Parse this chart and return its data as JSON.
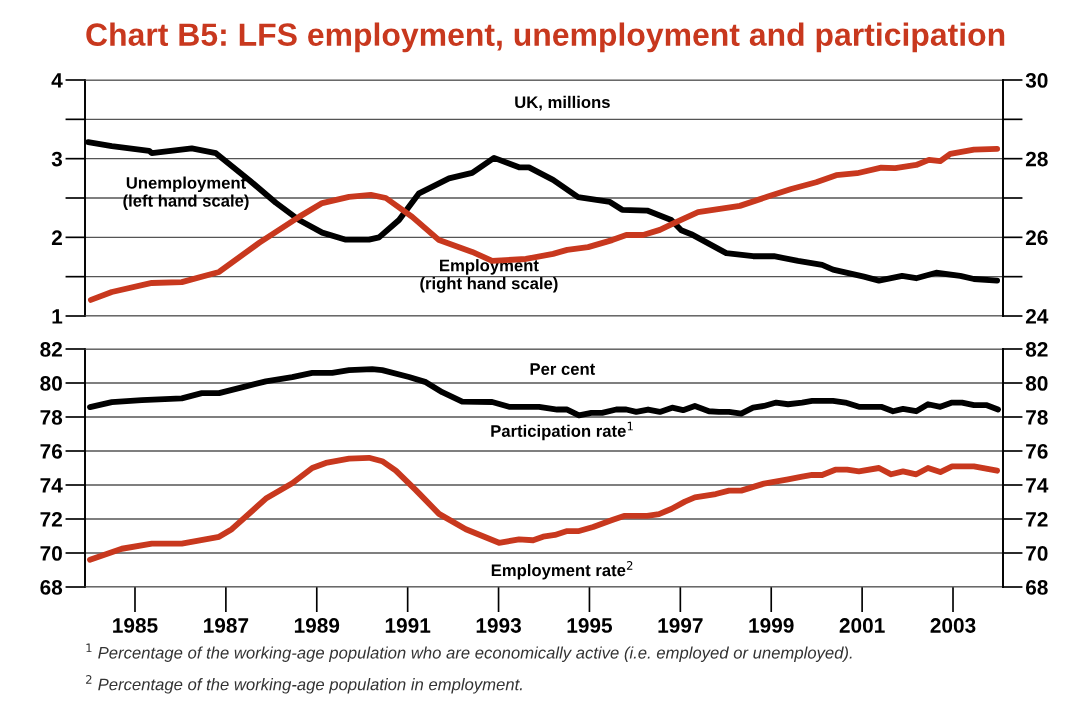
{
  "chart_data": [
    {
      "type": "line",
      "title": "Chart B5: LFS employment, unemployment and participation",
      "annotations": [
        "UK, millions"
      ],
      "xlim": [
        1983.9,
        2004.1
      ],
      "tick_labels": "y",
      "grid": "y",
      "ylim": [
        1,
        4
      ],
      "yticks": [
        1,
        {
          "value": 1.5,
          "label": null
        },
        2,
        {
          "value": 2.5,
          "label": null
        },
        3,
        {
          "value": 3.5,
          "label": null
        },
        4
      ],
      "y2lim": [
        24,
        30
      ],
      "y2ticks": [
        24,
        {
          "value": 25,
          "label": null
        },
        26,
        {
          "value": 27,
          "label": null
        },
        28,
        {
          "value": 29,
          "label": null
        },
        30
      ],
      "series": [
        {
          "name": "Unemployment\n(left hand scale)",
          "color": "#000000",
          "x": [
            1983.97,
            1984.49,
            1985.31,
            1985.37,
            1986.25,
            1986.78,
            1987.51,
            1988.1,
            1988.61,
            1989.12,
            1989.64,
            1990.15,
            1990.37,
            1990.81,
            1991.25,
            1991.91,
            1992.42,
            1992.9,
            1993.45,
            1993.67,
            1994.2,
            1994.75,
            1995.45,
            1995.72,
            1996.27,
            1996.8,
            1997.02,
            1997.24,
            1998.01,
            1998.6,
            1999.06,
            1999.59,
            2000.12,
            2000.36,
            2001.04,
            2001.37,
            2001.88,
            2002.19,
            2002.63,
            2003.16,
            2003.46,
            2003.97
          ],
          "values": [
            3.21,
            3.16,
            3.1,
            3.07,
            3.13,
            3.07,
            2.73,
            2.44,
            2.22,
            2.06,
            1.97,
            1.97,
            2.0,
            2.22,
            2.56,
            2.75,
            2.82,
            3.01,
            2.89,
            2.89,
            2.73,
            2.51,
            2.45,
            2.35,
            2.34,
            2.22,
            2.09,
            2.04,
            1.8,
            1.76,
            1.76,
            1.7,
            1.65,
            1.59,
            1.5,
            1.45,
            1.51,
            1.48,
            1.55,
            1.51,
            1.47,
            1.45
          ]
        },
        {
          "name": "Employment\n(right hand scale)",
          "color": "#c8381e",
          "axis": "y2",
          "x": [
            1984.03,
            1984.49,
            1985.37,
            1986.03,
            1986.85,
            1987.73,
            1988.61,
            1989.12,
            1989.71,
            1990.19,
            1990.52,
            1991.1,
            1991.69,
            1992.42,
            1992.86,
            1993.6,
            1994.2,
            1994.51,
            1994.97,
            1995.5,
            1995.81,
            1996.18,
            1996.55,
            1996.86,
            1997.1,
            1997.39,
            1998.31,
            1998.91,
            1999.44,
            1999.99,
            2000.43,
            2000.89,
            2001.42,
            2001.73,
            2002.19,
            2002.47,
            2002.72,
            2002.94,
            2003.46,
            2003.97
          ],
          "values": [
            24.41,
            24.61,
            24.84,
            24.86,
            25.12,
            25.86,
            26.52,
            26.87,
            27.03,
            27.08,
            27.0,
            26.52,
            25.93,
            25.63,
            25.4,
            25.45,
            25.58,
            25.68,
            25.75,
            25.93,
            26.06,
            26.06,
            26.19,
            26.36,
            26.49,
            26.64,
            26.8,
            27.03,
            27.23,
            27.4,
            27.58,
            27.63,
            27.77,
            27.76,
            27.84,
            27.97,
            27.94,
            28.12,
            28.23,
            28.25
          ]
        }
      ]
    },
    {
      "type": "line",
      "annotations": [
        "Per cent",
        "$^{1}$ Percentage of the working-age population who are economically active (i.e. employed or unemployed).",
        "$^{2}$ Percentage of the working-age population in employment."
      ],
      "xlim": [
        1983.9,
        2004.1
      ],
      "xticks": [
        1985,
        1987,
        1989,
        1991,
        1993,
        1995,
        1997,
        1999,
        2001,
        2003
      ],
      "grid": "y",
      "ylim": [
        68,
        82
      ],
      "yticks": [
        68,
        70,
        72,
        74,
        76,
        78,
        80,
        82
      ],
      "y2lim": [
        68,
        82
      ],
      "y2ticks": [
        68,
        70,
        72,
        74,
        76,
        78,
        80,
        82
      ],
      "series": [
        {
          "name": "Participation rate$^{1}$",
          "color": "#000000",
          "x": [
            1984.01,
            1984.49,
            1985.15,
            1986.03,
            1986.47,
            1986.85,
            1987.44,
            1987.88,
            1988.46,
            1988.9,
            1989.34,
            1989.71,
            1990.22,
            1990.44,
            1991.03,
            1991.4,
            1991.76,
            1992.2,
            1992.86,
            1993.23,
            1993.89,
            1994.29,
            1994.51,
            1994.77,
            1995.04,
            1995.28,
            1995.59,
            1995.81,
            1996.03,
            1996.29,
            1996.55,
            1996.82,
            1997.06,
            1997.32,
            1997.63,
            1997.85,
            1998.07,
            1998.34,
            1998.6,
            1998.84,
            1999.11,
            1999.37,
            1999.68,
            1999.9,
            2000.36,
            2000.63,
            2000.93,
            2001.42,
            2001.68,
            2001.9,
            2002.19,
            2002.45,
            2002.72,
            2002.98,
            2003.2,
            2003.46,
            2003.73,
            2003.99
          ],
          "values": [
            78.58,
            78.87,
            78.99,
            79.1,
            79.4,
            79.4,
            79.8,
            80.1,
            80.35,
            80.6,
            80.6,
            80.76,
            80.82,
            80.76,
            80.35,
            80.05,
            79.46,
            78.9,
            78.88,
            78.6,
            78.6,
            78.44,
            78.44,
            78.1,
            78.24,
            78.24,
            78.44,
            78.44,
            78.3,
            78.44,
            78.3,
            78.55,
            78.4,
            78.65,
            78.34,
            78.3,
            78.3,
            78.2,
            78.55,
            78.65,
            78.85,
            78.75,
            78.85,
            78.95,
            78.95,
            78.85,
            78.6,
            78.6,
            78.34,
            78.48,
            78.34,
            78.75,
            78.6,
            78.85,
            78.85,
            78.7,
            78.7,
            78.44
          ]
        },
        {
          "name": "Employment rate$^{2}$",
          "color": "#c8381e",
          "x": [
            1984.01,
            1984.71,
            1985.37,
            1986.03,
            1986.85,
            1987.13,
            1987.88,
            1988.46,
            1988.9,
            1989.2,
            1989.71,
            1990.15,
            1990.44,
            1990.74,
            1991.18,
            1991.69,
            1992.28,
            1993.01,
            1993.45,
            1993.76,
            1993.98,
            1994.24,
            1994.51,
            1994.77,
            1995.08,
            1995.5,
            1995.76,
            1996.27,
            1996.53,
            1996.8,
            1997.1,
            1997.32,
            1997.78,
            1998.07,
            1998.34,
            1998.84,
            1999.37,
            1999.68,
            1999.9,
            2000.12,
            2000.41,
            2000.67,
            2000.93,
            2001.37,
            2001.64,
            2001.9,
            2002.19,
            2002.45,
            2002.72,
            2002.98,
            2003.46,
            2003.97
          ],
          "values": [
            69.6,
            70.25,
            70.55,
            70.55,
            70.95,
            71.4,
            73.2,
            74.1,
            75.0,
            75.3,
            75.55,
            75.6,
            75.4,
            74.85,
            73.7,
            72.3,
            71.4,
            70.6,
            70.8,
            70.75,
            70.96,
            71.06,
            71.29,
            71.29,
            71.53,
            71.94,
            72.18,
            72.18,
            72.29,
            72.59,
            73.02,
            73.27,
            73.47,
            73.67,
            73.67,
            74.08,
            74.33,
            74.49,
            74.59,
            74.59,
            74.9,
            74.9,
            74.8,
            75.0,
            74.63,
            74.8,
            74.63,
            75.0,
            74.76,
            75.1,
            75.1,
            74.84
          ]
        }
      ]
    }
  ]
}
